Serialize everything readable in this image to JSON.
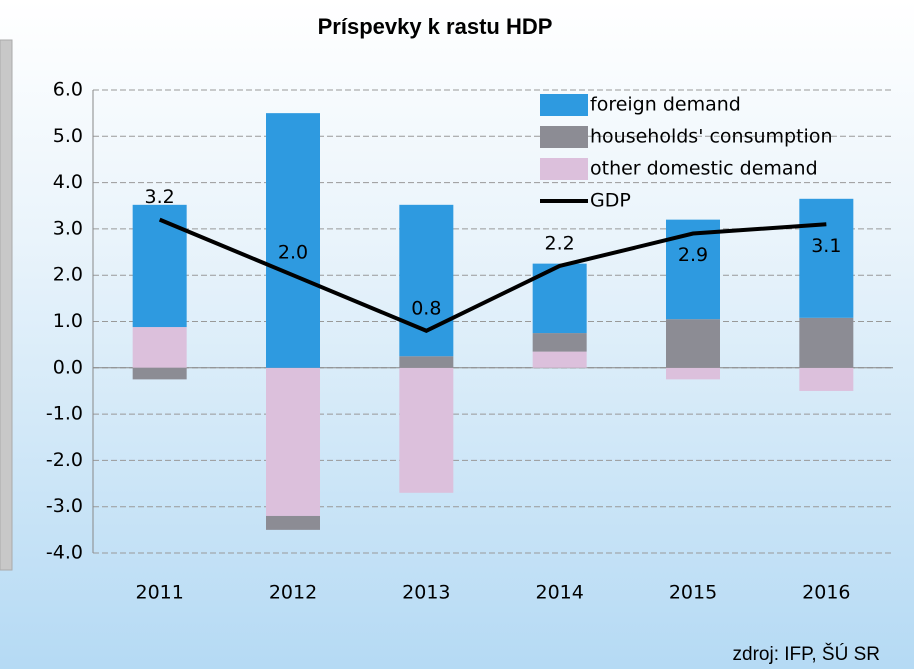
{
  "chart_data": {
    "type": "bar",
    "title": "Príspevky k rastu HDP",
    "source": "zdroj: IFP, ŠÚ SR",
    "categories": [
      "2011",
      "2012",
      "2013",
      "2014",
      "2015",
      "2016"
    ],
    "series": [
      {
        "name": "foreign demand",
        "color": "#2e9ae0",
        "values": [
          2.64,
          5.5,
          3.27,
          1.5,
          2.15,
          2.57
        ]
      },
      {
        "name": "households' consumption",
        "color": "#8c8c94",
        "values": [
          -0.25,
          -0.3,
          0.25,
          0.4,
          1.05,
          1.08
        ]
      },
      {
        "name": "other domestic demand",
        "color": "#dcc0dc",
        "values": [
          0.88,
          -3.2,
          -2.7,
          0.35,
          -0.25,
          -0.5
        ]
      },
      {
        "name": "GDP",
        "type": "line",
        "color": "#000000",
        "values": [
          3.2,
          2.0,
          0.8,
          2.2,
          2.9,
          3.1
        ],
        "value_labels": [
          "3.2",
          "2.0",
          "0.8",
          "2.2",
          "2.9",
          "3.1"
        ]
      }
    ],
    "ylim": [
      -4,
      6
    ],
    "yticks": [
      {
        "value": -4,
        "label": "-4.0"
      },
      {
        "value": -3,
        "label": "-3.0"
      },
      {
        "value": -2,
        "label": "-2.0"
      },
      {
        "value": -1,
        "label": "-1.0"
      },
      {
        "value": 0,
        "label": "0.0"
      },
      {
        "value": 1,
        "label": "1.0"
      },
      {
        "value": 2,
        "label": "2.0"
      },
      {
        "value": 3,
        "label": "3.0"
      },
      {
        "value": 4,
        "label": "4.0"
      },
      {
        "value": 5,
        "label": "5.0"
      },
      {
        "value": 6,
        "label": "6.0"
      }
    ],
    "grid": true
  }
}
